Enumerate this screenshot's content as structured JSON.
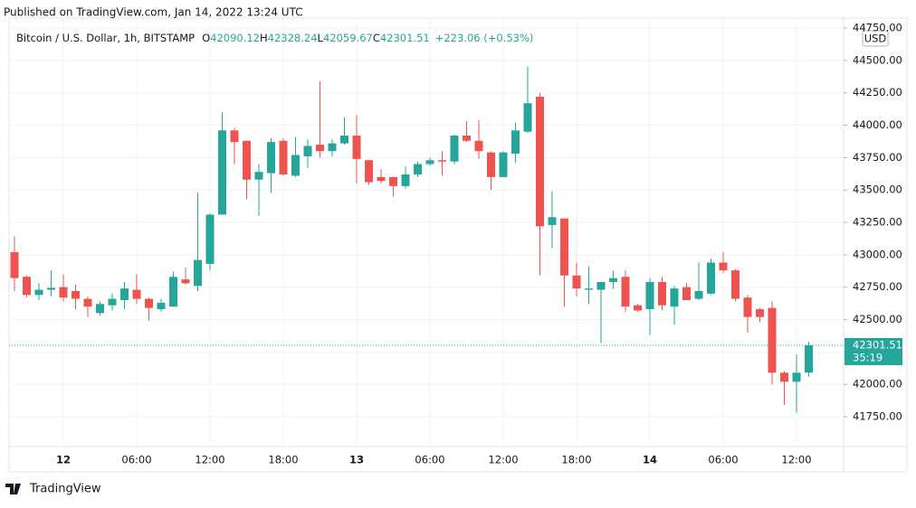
{
  "header": {
    "published": "Published on TradingView.com, Jan 14, 2022 13:24 UTC"
  },
  "footer": {
    "brand": "TradingView"
  },
  "chart_data": {
    "type": "candlestick",
    "title": "Bitcoin / U.S. Dollar, 1h, BITSTAMP",
    "ohlc_legend": [
      {
        "key": "O",
        "value": 42090.12
      },
      {
        "key": "H",
        "value": 42328.24
      },
      {
        "key": "L",
        "value": 42059.67
      },
      {
        "key": "C",
        "value": 42301.51
      }
    ],
    "change": "+223.06 (+0.53%)",
    "currency": "USD",
    "last_price": {
      "value": 42301.51,
      "label": "42301.51"
    },
    "countdown": "35:19",
    "up_color": "#26a69a",
    "down_color": "#ef5350",
    "grid": true,
    "categories": [
      null,
      null,
      null,
      null,
      "12",
      null,
      null,
      null,
      null,
      null,
      "06:00",
      null,
      null,
      null,
      null,
      null,
      "12:00",
      null,
      null,
      null,
      null,
      null,
      "18:00",
      null,
      null,
      null,
      null,
      null,
      "13",
      null,
      null,
      null,
      null,
      null,
      "06:00",
      null,
      null,
      null,
      null,
      null,
      "12:00",
      null,
      null,
      null,
      null,
      null,
      "18:00",
      null,
      null,
      null,
      null,
      null,
      "14",
      null,
      null,
      null,
      null,
      null,
      "06:00",
      null,
      null,
      null,
      null,
      null,
      "12:00",
      null
    ],
    "series": [
      {
        "name": "BTCUSD",
        "open": [
          43020,
          42830,
          42690,
          42730,
          42750,
          42720,
          42660,
          42550,
          42610,
          42650,
          42730,
          42660,
          42580,
          42600,
          42810,
          42760,
          42930,
          43310,
          43960,
          43880,
          43580,
          43630,
          43880,
          43610,
          43760,
          43850,
          43800,
          43860,
          43920,
          43730,
          43600,
          43600,
          43530,
          43620,
          43700,
          43730,
          43720,
          43920,
          43880,
          43790,
          43600,
          43780,
          43950,
          44220,
          43230,
          43280,
          42840,
          42730,
          42730,
          42790,
          42830,
          42610,
          42580,
          42790,
          42600,
          42750,
          42660,
          42700,
          42940,
          42880,
          42670,
          42580,
          42590,
          42090,
          42020,
          42090.12
        ],
        "high": [
          43140,
          42840,
          42780,
          42880,
          42850,
          42770,
          42680,
          42640,
          42700,
          42790,
          42850,
          42670,
          42660,
          42870,
          42900,
          43480,
          43320,
          44100,
          43980,
          43880,
          43700,
          43900,
          43900,
          43910,
          43890,
          44340,
          43890,
          44060,
          44080,
          43730,
          43660,
          43600,
          43680,
          43720,
          43750,
          43800,
          43930,
          44030,
          44040,
          43800,
          43800,
          44020,
          44450,
          44250,
          43490,
          43280,
          42940,
          42910,
          42790,
          42880,
          42880,
          42620,
          42820,
          42830,
          42760,
          42780,
          42940,
          42970,
          43020,
          42890,
          42690,
          42590,
          42640,
          42100,
          42230,
          42328.24
        ],
        "low": [
          42720,
          42670,
          42650,
          42680,
          42640,
          42580,
          42520,
          42530,
          42570,
          42580,
          42620,
          42490,
          42560,
          42600,
          42770,
          42720,
          42880,
          43310,
          43700,
          43430,
          43300,
          43480,
          43610,
          43600,
          43670,
          43750,
          43760,
          43850,
          43550,
          43540,
          43550,
          43450,
          43510,
          43600,
          43690,
          43610,
          43700,
          43870,
          43740,
          43500,
          43610,
          43710,
          43940,
          42840,
          43050,
          42600,
          42680,
          42620,
          42320,
          42740,
          42560,
          42560,
          42380,
          42570,
          42460,
          42650,
          42650,
          42690,
          42860,
          42640,
          42400,
          42480,
          42000,
          41840,
          41780,
          42059.67
        ],
        "close": [
          42820,
          42690,
          42730,
          42745,
          42670,
          42660,
          42600,
          42620,
          42660,
          42740,
          42660,
          42590,
          42630,
          42830,
          42780,
          42960,
          43310,
          43960,
          43870,
          43580,
          43640,
          43870,
          43620,
          43770,
          43840,
          43800,
          43860,
          43920,
          43740,
          43560,
          43570,
          43530,
          43620,
          43700,
          43730,
          43720,
          43920,
          43880,
          43800,
          43600,
          43790,
          43960,
          44170,
          43220,
          43290,
          42840,
          42740,
          42740,
          42790,
          42820,
          42600,
          42570,
          42790,
          42610,
          42740,
          42650,
          42720,
          42940,
          42880,
          42660,
          42520,
          42520,
          42090,
          42020,
          42090,
          42301.51
        ]
      }
    ],
    "ylim": [
      41520,
      44827
    ],
    "yticks": [
      {
        "value": 41750,
        "label": "41750.00"
      },
      {
        "value": 42000,
        "label": "42000.00"
      },
      {
        "value": 42250,
        "label": "42250.00"
      },
      {
        "value": 42500,
        "label": "42500.00"
      },
      {
        "value": 42750,
        "label": "42750.00"
      },
      {
        "value": 43000,
        "label": "43000.00"
      },
      {
        "value": 43250,
        "label": "43250.00"
      },
      {
        "value": 43500,
        "label": "43500.00"
      },
      {
        "value": 43750,
        "label": "43750.00"
      },
      {
        "value": 44000,
        "label": "44000.00"
      },
      {
        "value": 44250,
        "label": "44250.00"
      },
      {
        "value": 44500,
        "label": "44500.00"
      },
      {
        "value": 44750,
        "label": "44750.00"
      }
    ]
  }
}
